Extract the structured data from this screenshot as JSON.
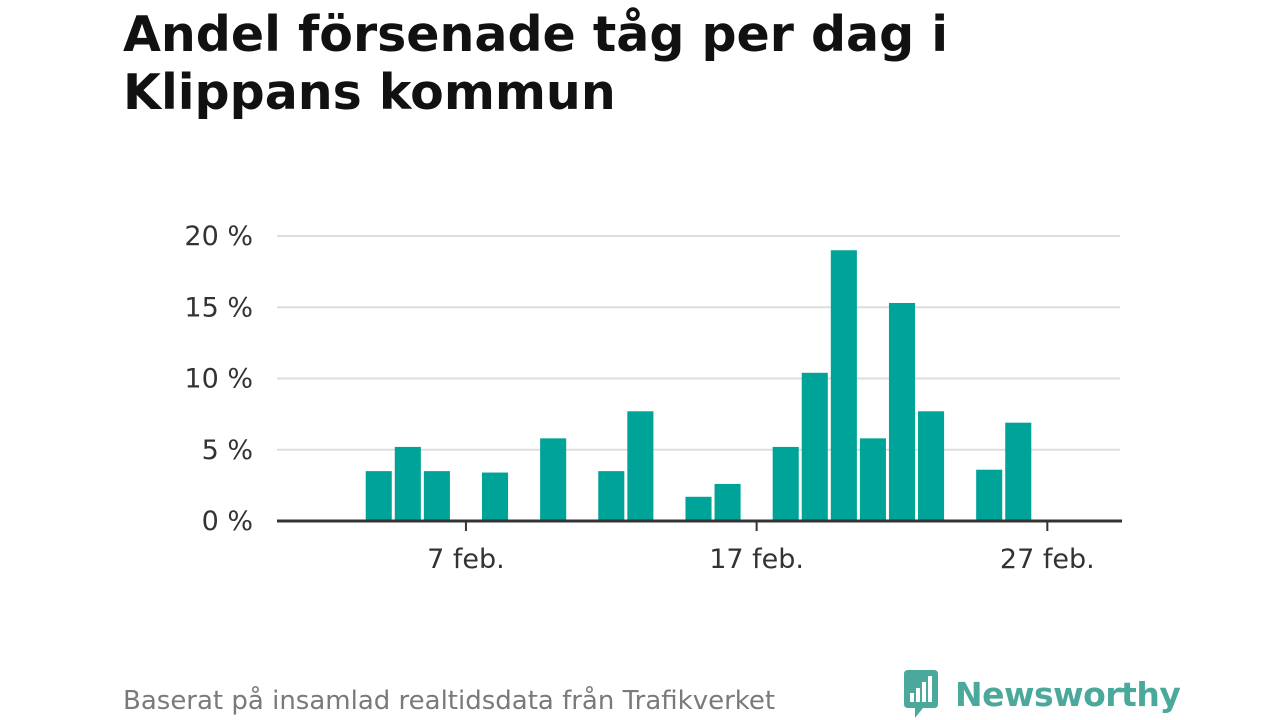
{
  "title": "Andel försenade tåg per dag i Klippans kommun",
  "source": "Baserat på insamlad realtidsdata från Trafikverket",
  "brand": {
    "name": "Newsworthy",
    "icon": "newsworthy-logo-icon",
    "color": "#4aa99b"
  },
  "colors": {
    "bar": "#00a398",
    "grid": "#dddddd",
    "axis": "#333333",
    "text": "#333333"
  },
  "chart_data": {
    "type": "bar",
    "x_axis": {
      "type": "date",
      "min": "2024-02-01",
      "max": "2024-02-29",
      "ticks": [
        {
          "date": "2024-02-07",
          "label": "7 feb."
        },
        {
          "date": "2024-02-17",
          "label": "17 feb."
        },
        {
          "date": "2024-02-27",
          "label": "27 feb."
        }
      ]
    },
    "y_axis": {
      "min": 0,
      "max": 20,
      "ticks": [
        {
          "value": 0,
          "label": "0 %"
        },
        {
          "value": 5,
          "label": "5 %"
        },
        {
          "value": 10,
          "label": "10 %"
        },
        {
          "value": 15,
          "label": "15 %"
        },
        {
          "value": 20,
          "label": "20 %"
        }
      ]
    },
    "grid": true,
    "unit": "%",
    "points": [
      {
        "date": "2024-02-04",
        "value": 3.5
      },
      {
        "date": "2024-02-05",
        "value": 5.2
      },
      {
        "date": "2024-02-06",
        "value": 3.5
      },
      {
        "date": "2024-02-08",
        "value": 3.4
      },
      {
        "date": "2024-02-10",
        "value": 5.8
      },
      {
        "date": "2024-02-12",
        "value": 3.5
      },
      {
        "date": "2024-02-13",
        "value": 7.7
      },
      {
        "date": "2024-02-15",
        "value": 1.7
      },
      {
        "date": "2024-02-16",
        "value": 2.6
      },
      {
        "date": "2024-02-18",
        "value": 5.2
      },
      {
        "date": "2024-02-19",
        "value": 10.4
      },
      {
        "date": "2024-02-20",
        "value": 19.0
      },
      {
        "date": "2024-02-21",
        "value": 5.8
      },
      {
        "date": "2024-02-22",
        "value": 15.3
      },
      {
        "date": "2024-02-23",
        "value": 7.7
      },
      {
        "date": "2024-02-25",
        "value": 3.6
      },
      {
        "date": "2024-02-26",
        "value": 6.9
      }
    ]
  }
}
